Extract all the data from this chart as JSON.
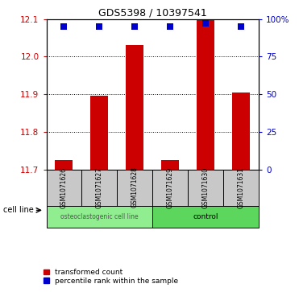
{
  "title": "GDS5398 / 10397541",
  "samples": [
    "GSM1071626",
    "GSM1071627",
    "GSM1071628",
    "GSM1071629",
    "GSM1071630",
    "GSM1071631"
  ],
  "red_values": [
    11.725,
    11.895,
    12.03,
    11.725,
    12.1,
    11.905
  ],
  "blue_values": [
    95,
    95,
    95,
    95,
    97,
    95
  ],
  "ylim_left": [
    11.7,
    12.1
  ],
  "ylim_right": [
    0,
    100
  ],
  "yticks_left": [
    11.7,
    11.8,
    11.9,
    12.0,
    12.1
  ],
  "yticks_right": [
    0,
    25,
    50,
    75,
    100
  ],
  "ytick_labels_right": [
    "0",
    "25",
    "50",
    "75",
    "100%"
  ],
  "groups": [
    {
      "label": "osteoclastogenic cell line",
      "color": "#90EE90",
      "start": 0,
      "end": 3
    },
    {
      "label": "control",
      "color": "#5CD65C",
      "start": 3,
      "end": 6
    }
  ],
  "bar_color": "#CC0000",
  "dot_color": "#0000CC",
  "bar_width": 0.5,
  "dot_size": 35,
  "cell_line_label": "cell line",
  "legend_red": "transformed count",
  "legend_blue": "percentile rank within the sample",
  "label_color_left": "#CC0000",
  "label_color_right": "#0000CC",
  "sample_box_color": "#C8C8C8"
}
